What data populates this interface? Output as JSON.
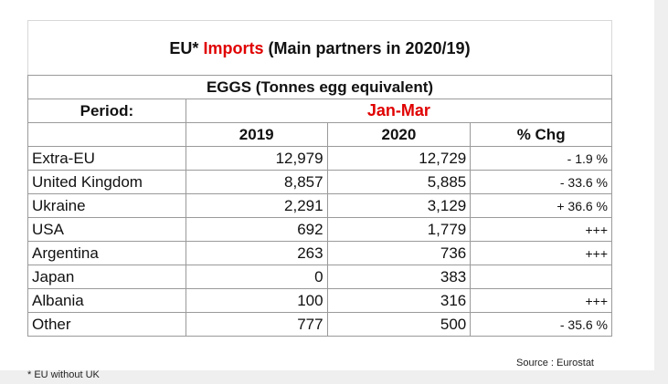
{
  "title": {
    "prefix": "EU*",
    "highlight": "Imports",
    "suffix": "(Main partners in 2020/19)"
  },
  "table": {
    "subtitle": "EGGS (Tonnes egg equivalent)",
    "period_label": "Period:",
    "period": "Jan-Mar",
    "columns": [
      "2019",
      "2020",
      "% Chg"
    ],
    "rows": [
      [
        "Extra-EU",
        "12,979",
        "12,729",
        "- 1.9 %"
      ],
      [
        "United Kingdom",
        "8,857",
        "5,885",
        "- 33.6 %"
      ],
      [
        "Ukraine",
        "2,291",
        "3,129",
        "+ 36.6 %"
      ],
      [
        "USA",
        "692",
        "1,779",
        "+++"
      ],
      [
        "Argentina",
        "263",
        "736",
        "+++"
      ],
      [
        "Japan",
        "0",
        "383",
        ""
      ],
      [
        "Albania",
        "100",
        "316",
        "+++"
      ],
      [
        "Other",
        "777",
        "500",
        "- 35.6 %"
      ]
    ]
  },
  "source": "Source : Eurostat",
  "footnote": "* EU without UK"
}
